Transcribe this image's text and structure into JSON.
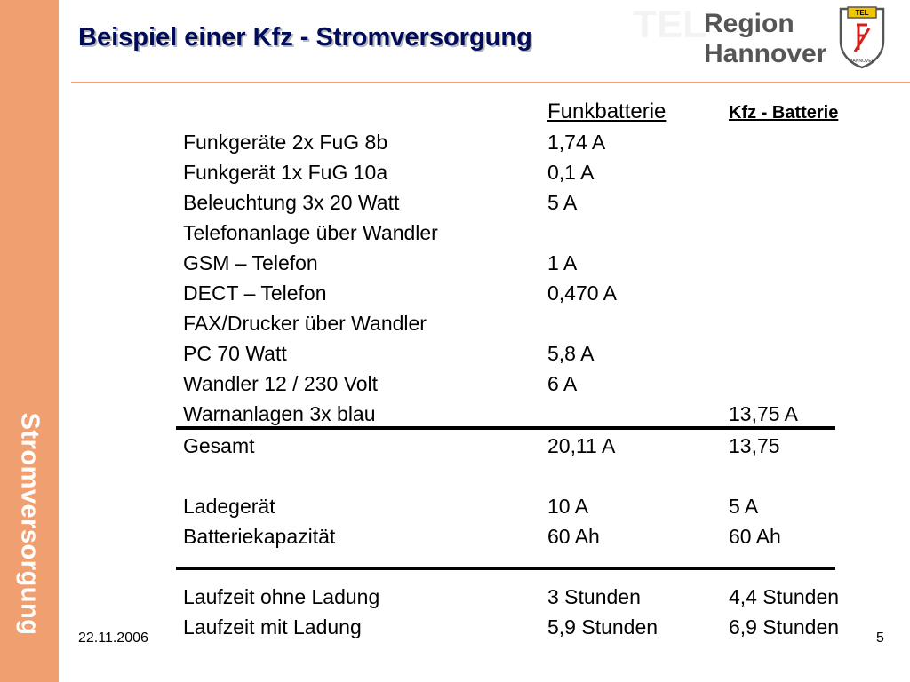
{
  "sidebar_label": "Stromversorgung",
  "title": "Beispiel einer Kfz - Stromversorgung",
  "logo": {
    "region_line1": "Region",
    "region_line2": "Hannover",
    "crest_top": "TEL",
    "crest_bottom": "HANNOVER",
    "colors": {
      "red": "#d4201c",
      "yellow": "#f2c400",
      "frame": "#555555"
    }
  },
  "table": {
    "headers": {
      "funk": "Funkbatterie",
      "kfz": "Kfz - Batterie"
    },
    "rows": [
      {
        "label": "Funkgeräte 2x FuG 8b",
        "funk": "1,74 A",
        "kfz": ""
      },
      {
        "label": "Funkgerät   1x FuG 10a",
        "funk": "0,1 A",
        "kfz": ""
      },
      {
        "label": "Beleuchtung 3x 20 Watt",
        "funk": "5 A",
        "kfz": ""
      },
      {
        "label": "Telefonanlage über Wandler",
        "funk": "",
        "kfz": ""
      },
      {
        "label": "GSM – Telefon",
        "funk": "1 A",
        "kfz": ""
      },
      {
        "label": "DECT – Telefon",
        "funk": "0,470 A",
        "kfz": ""
      },
      {
        "label": "FAX/Drucker über Wandler",
        "funk": "",
        "kfz": ""
      },
      {
        "label": "PC 70 Watt",
        "funk": "5,8 A",
        "kfz": ""
      },
      {
        "label": "Wandler 12 / 230 Volt",
        "funk": "6 A",
        "kfz": ""
      },
      {
        "label": "Warnanlagen 3x blau",
        "funk": "",
        "kfz": "13,75 A"
      },
      {
        "label": "Gesamt",
        "funk": "20,11 A",
        "kfz": "13,75"
      },
      {
        "label": "Ladegerät",
        "funk": "10 A",
        "kfz": "5 A"
      },
      {
        "label": "Batteriekapazität",
        "funk": "60 Ah",
        "kfz": "60 Ah"
      },
      {
        "label": "Laufzeit ohne Ladung",
        "funk": "3 Stunden",
        "kfz": "4,4 Stunden"
      },
      {
        "label": "Laufzeit mit Ladung",
        "funk": "5,9 Stunden",
        "kfz": "6,9 Stunden"
      }
    ]
  },
  "footer": {
    "date": "22.11.2006",
    "page": "5"
  },
  "colors": {
    "sidebar": "#f0a070",
    "title": "#000c5a"
  }
}
